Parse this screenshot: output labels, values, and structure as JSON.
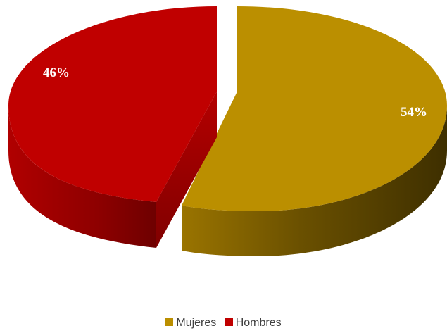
{
  "chart_data": {
    "type": "pie",
    "title": "",
    "categories": [
      "Mujeres",
      "Hombres"
    ],
    "values": [
      54,
      46
    ],
    "data_labels": [
      "54%",
      "46%"
    ],
    "colors": [
      "#bb8f00",
      "#c00000"
    ],
    "legend_position": "bottom",
    "exploded": "Hombres",
    "style": "3d"
  }
}
